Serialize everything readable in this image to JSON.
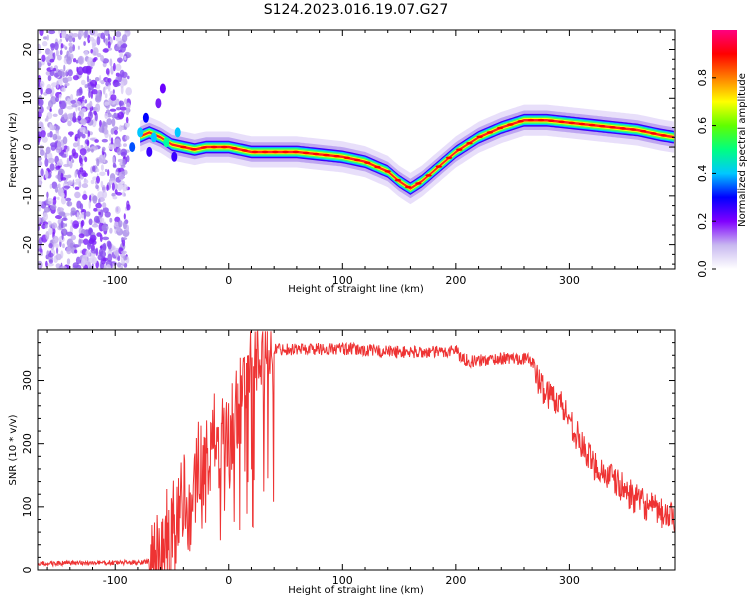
{
  "title": "S124.2023.016.19.07.G27",
  "chart_data": [
    {
      "type": "heatmap",
      "title": "S124.2023.016.19.07.G27",
      "xlabel": "Height of straight line (km)",
      "ylabel": "Frequency (Hz)",
      "xlim": [
        -168,
        393
      ],
      "ylim": [
        -25,
        24
      ],
      "xticks": [
        -100,
        0,
        100,
        200,
        300
      ],
      "yticks": [
        -20,
        -10,
        0,
        10,
        20
      ],
      "colorbar": {
        "label": "Normalized spectral amplitude",
        "range": [
          0,
          1
        ],
        "ticks": [
          "0.0",
          "0.2",
          "0.4",
          "0.6",
          "0.8"
        ],
        "colormap": [
          "#ffffff",
          "#c8b8f0",
          "#8000ff",
          "#0000ff",
          "#00c8ff",
          "#00ff80",
          "#60ff00",
          "#ffff00",
          "#ff8000",
          "#ff0000",
          "#ff0080"
        ]
      },
      "ridge": {
        "x": [
          -80,
          -70,
          -60,
          -50,
          -40,
          -30,
          -20,
          0,
          20,
          40,
          60,
          80,
          100,
          120,
          140,
          150,
          160,
          170,
          180,
          200,
          220,
          240,
          260,
          280,
          300,
          320,
          340,
          360,
          380,
          393
        ],
        "y": [
          2,
          3,
          2,
          0.5,
          0,
          -0.5,
          0,
          0,
          -1,
          -1,
          -1,
          -1.5,
          -2,
          -3,
          -5,
          -7,
          -8.5,
          -7,
          -5,
          -1,
          2,
          4,
          5.5,
          5.5,
          5,
          4.5,
          4,
          3.5,
          2.5,
          2
        ]
      },
      "noise_region_x": [
        -168,
        -88
      ]
    },
    {
      "type": "line",
      "xlabel": "Height of straight line (km)",
      "ylabel": "SNR (10 * v/v)",
      "xlim": [
        -168,
        393
      ],
      "ylim": [
        0,
        380
      ],
      "xticks": [
        -100,
        0,
        100,
        200,
        300
      ],
      "yticks": [
        0,
        100,
        200,
        300
      ],
      "color": "#ee3333",
      "envelope": {
        "x": [
          -168,
          -80,
          -65,
          -55,
          -45,
          -35,
          -25,
          -15,
          -5,
          5,
          15,
          25,
          35,
          60,
          100,
          150,
          190,
          200,
          205,
          215,
          240,
          260,
          268,
          272,
          280,
          290,
          300,
          310,
          320,
          340,
          360,
          380,
          393
        ],
        "y": [
          10,
          12,
          15,
          40,
          80,
          120,
          160,
          180,
          210,
          240,
          300,
          340,
          350,
          350,
          350,
          345,
          345,
          350,
          335,
          330,
          335,
          335,
          330,
          300,
          280,
          270,
          240,
          200,
          170,
          140,
          110,
          90,
          80
        ]
      }
    }
  ]
}
